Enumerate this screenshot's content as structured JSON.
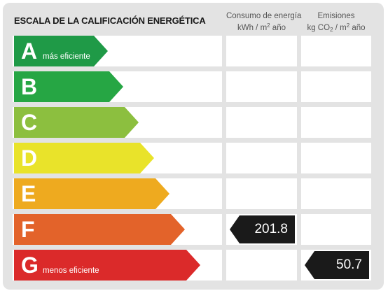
{
  "title": "ESCALA DE LA CALIFICACIÓN ENERGÉTICA",
  "columns": {
    "consumption": {
      "line1": "Consumo de energía",
      "unit_pre": "kWh / m",
      "unit_sup": "2",
      "unit_post": " año"
    },
    "emissions": {
      "line1": "Emisiones",
      "unit_pre": "kg CO",
      "unit_sub": "2",
      "unit_mid": " / m",
      "unit_sup": "2",
      "unit_post": " año"
    }
  },
  "ratings": [
    {
      "letter": "A",
      "label": "más eficiente",
      "color": "#1f9a47",
      "level": 1
    },
    {
      "letter": "B",
      "label": "",
      "color": "#26a644",
      "level": 2
    },
    {
      "letter": "C",
      "label": "",
      "color": "#8cbf3f",
      "level": 3
    },
    {
      "letter": "D",
      "label": "",
      "color": "#e9e32a",
      "level": 4
    },
    {
      "letter": "E",
      "label": "",
      "color": "#eeaa1f",
      "level": 5
    },
    {
      "letter": "F",
      "label": "",
      "color": "#e3632a",
      "level": 6
    },
    {
      "letter": "G",
      "label": "menos eficiente",
      "color": "#db2a2a",
      "level": 7
    }
  ],
  "values": {
    "consumption": {
      "value": "201.8",
      "rating": "F"
    },
    "emissions": {
      "value": "50.7",
      "rating": "G"
    }
  },
  "tag_color": "#1a1a1a"
}
